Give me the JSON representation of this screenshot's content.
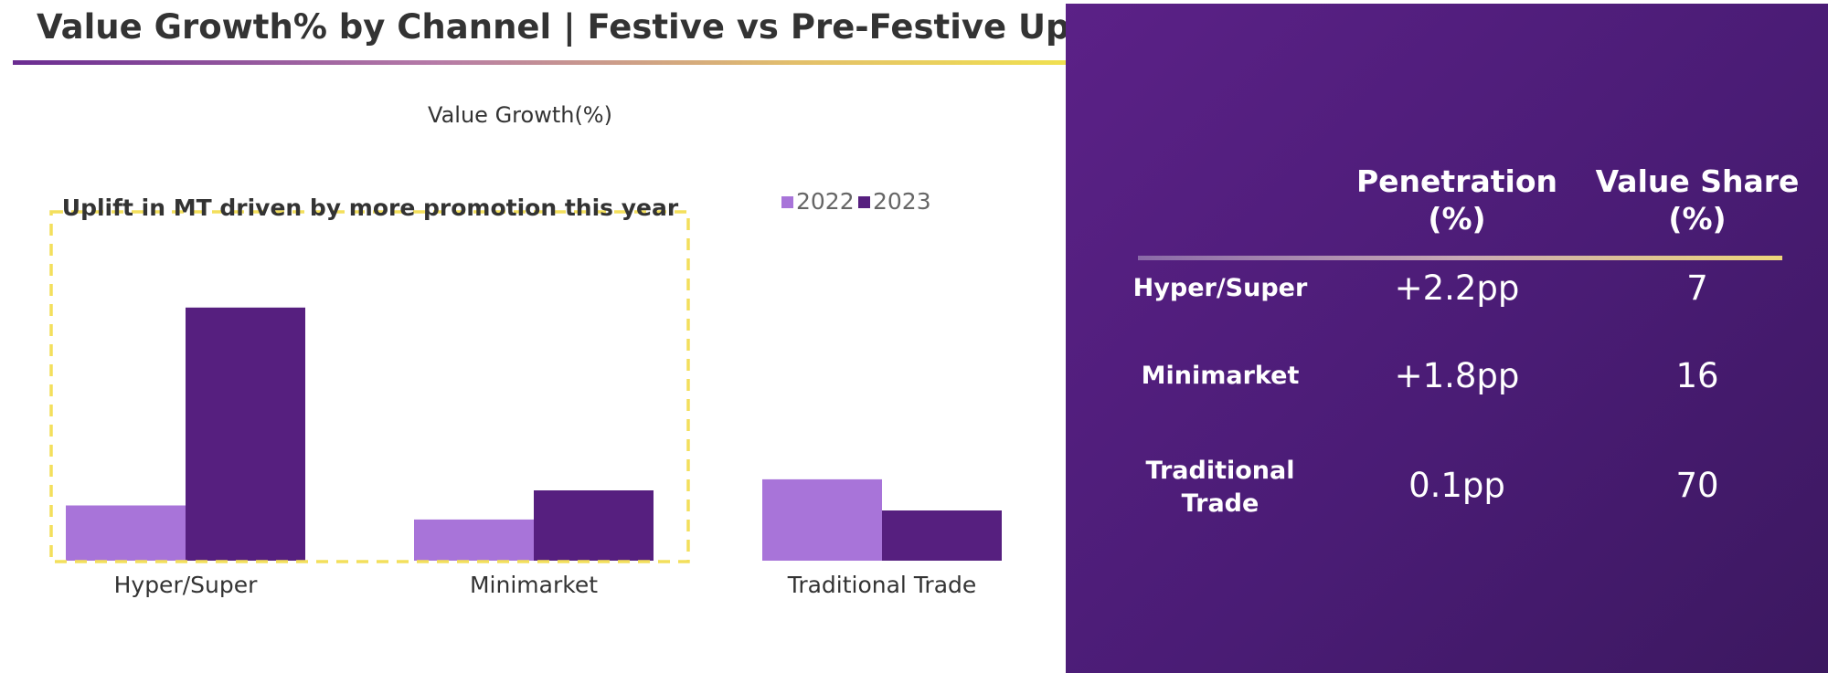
{
  "header": {
    "title": "Value Growth% by Channel | Festive vs Pre-Festive Uplift"
  },
  "chart_data": {
    "type": "bar",
    "title": "Value Growth(%)",
    "categories": [
      "Hyper/Super",
      "Minimarket",
      "Traditional Trade"
    ],
    "series": [
      {
        "name": "2022",
        "values": [
          5.5,
          4.1,
          8.1
        ],
        "color": "#a874d9"
      },
      {
        "name": "2023",
        "values": [
          25.2,
          7.0,
          5.0
        ],
        "color": "#561f7f"
      }
    ],
    "ylim": [
      0,
      30
    ],
    "grid": false,
    "legend_position": "top-right",
    "annotation": "Uplift in MT driven by more promotion this year"
  },
  "table": {
    "headers": [
      "Penetration\n(%)",
      "Value Share\n(%)"
    ],
    "rows": [
      {
        "label": "Hyper/Super",
        "penetration": "+2.2pp",
        "value_share": "7"
      },
      {
        "label": "Minimarket",
        "penetration": "+1.8pp",
        "value_share": "16"
      },
      {
        "label": "Traditional\nTrade",
        "penetration": "0.1pp",
        "value_share": "70"
      }
    ]
  },
  "colors": {
    "panel_bg": "#4a1c75",
    "highlight_box": "#f3df5c",
    "title_text": "#333333"
  }
}
